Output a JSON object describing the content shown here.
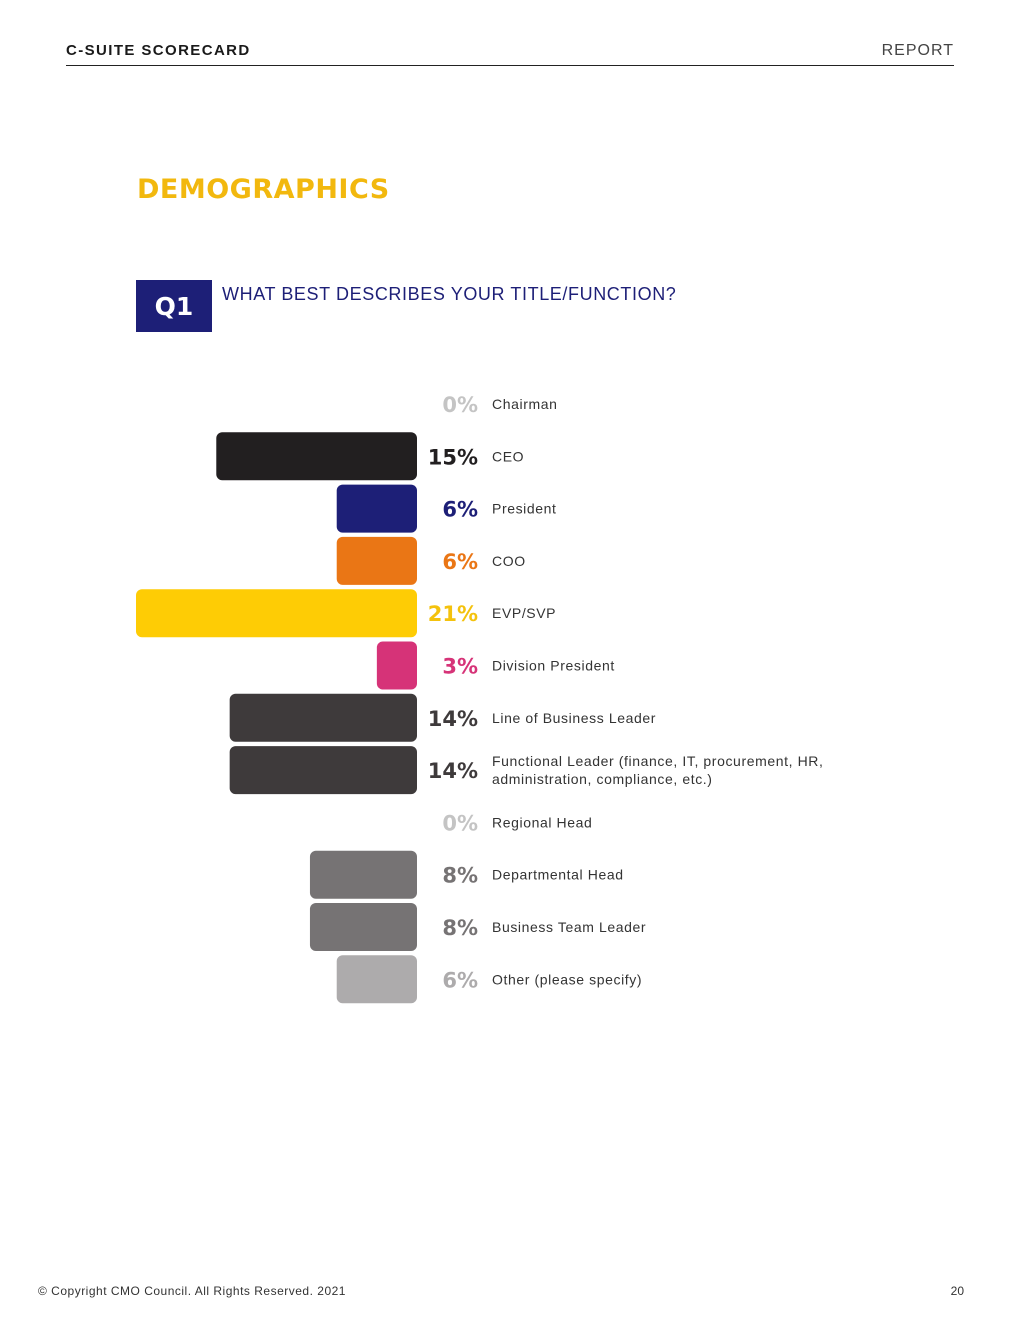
{
  "header": {
    "left_title": "C-SUITE SCORECARD",
    "right_title": "REPORT"
  },
  "section_title": "DEMOGRAPHICS",
  "question": {
    "badge": "Q1",
    "text": "WHAT BEST DESCRIBES YOUR TITLE/FUNCTION?"
  },
  "chart_data": {
    "type": "bar",
    "orientation": "horizontal",
    "title": "",
    "xlabel": "",
    "ylabel": "",
    "unit": "%",
    "categories": [
      [
        "Chairman"
      ],
      [
        "CEO"
      ],
      [
        "President"
      ],
      [
        "COO"
      ],
      [
        "EVP/SVP"
      ],
      [
        "Division President"
      ],
      [
        "Line of Business Leader"
      ],
      [
        "Functional Leader (finance, IT, procurement, HR,",
        "administration, compliance, etc.)"
      ],
      [
        "Regional Head"
      ],
      [
        "Departmental Head"
      ],
      [
        "Business Team Leader"
      ],
      [
        "Other (please specify)"
      ]
    ],
    "values": [
      0,
      15,
      6,
      6,
      21,
      3,
      14,
      14,
      0,
      8,
      8,
      6
    ],
    "value_labels": [
      "0%",
      "15%",
      "6%",
      "6%",
      "21%",
      "3%",
      "14%",
      "14%",
      "0%",
      "8%",
      "8%",
      "6%"
    ],
    "bar_colors": [
      "#bdbdbd",
      "#221f20",
      "#1d1f77",
      "#ea7615",
      "#fecc05",
      "#d63378",
      "#3e3a3b",
      "#3e3a3b",
      "#bdbdbd",
      "#767374",
      "#767374",
      "#adabac"
    ],
    "label_colors": [
      "#c4c4c4",
      "#221f20",
      "#1d1f77",
      "#ea7615",
      "#f4c20d",
      "#d63378",
      "#3e3a3b",
      "#3e3a3b",
      "#c4c4c4",
      "#767374",
      "#767374",
      "#adabac"
    ],
    "xlim": [
      0,
      21
    ]
  },
  "footer": {
    "copyright": "© Copyright CMO Council. All Rights Reserved. 2021",
    "page_number": "20"
  }
}
